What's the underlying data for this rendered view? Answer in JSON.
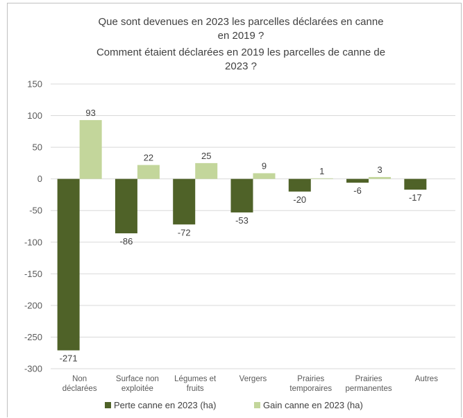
{
  "chart_data": {
    "type": "bar",
    "title_lines": [
      "Que sont devenues en 2023 les parcelles déclarées en canne",
      "en 2019 ?",
      "Comment étaient déclarées en 2019 les parcelles de canne de",
      "2023 ?"
    ],
    "categories": [
      [
        "Non",
        "déclarées"
      ],
      [
        "Surface non",
        "exploitée"
      ],
      [
        "Légumes et",
        "fruits"
      ],
      [
        "Vergers"
      ],
      [
        "Prairies",
        "temporaires"
      ],
      [
        "Prairies",
        "permanentes"
      ],
      [
        "Autres"
      ]
    ],
    "series": [
      {
        "name": "Perte canne en 2023 (ha)",
        "color": "#4f6228",
        "values": [
          -271,
          -86,
          -72,
          -53,
          -20,
          -6,
          -17
        ]
      },
      {
        "name": "Gain canne en 2023 (ha)",
        "color": "#c3d69b",
        "values": [
          93,
          22,
          25,
          9,
          1,
          3,
          null
        ]
      }
    ],
    "yticks": [
      150,
      100,
      50,
      0,
      -50,
      -100,
      -150,
      -200,
      -250,
      -300
    ],
    "ylim": [
      -300,
      150
    ],
    "grid": true,
    "legend_position": "bottom"
  }
}
